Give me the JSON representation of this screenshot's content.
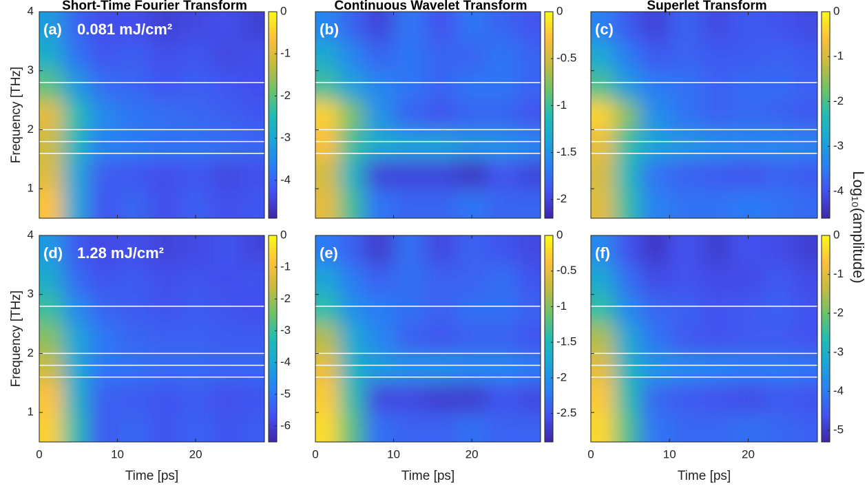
{
  "figure": {
    "colorbar_label": "Log₁₀(amplitude)"
  },
  "chart_data": [
    {
      "type": "heatmap",
      "title": "Short-Time Fourier Transform",
      "panel_label": "(a)",
      "annotation": "0.081 mJ/cm²",
      "ylabel": "Frequency [THz]",
      "x": [
        1.5,
        4.5,
        8,
        12,
        16,
        20,
        24,
        27.5
      ],
      "y": [
        3.75,
        3.25,
        2.75,
        2.25,
        1.75,
        1.25,
        0.75
      ],
      "z": [
        [
          -3.2,
          -4.0,
          -4.3,
          -4.3,
          -4.5,
          -4.4,
          -4.3,
          -4.5
        ],
        [
          -2.8,
          -3.8,
          -4.2,
          -4.1,
          -4.3,
          -4.2,
          -4.4,
          -4.3
        ],
        [
          -2.0,
          -3.2,
          -3.9,
          -4.0,
          -4.2,
          -4.1,
          -4.2,
          -4.3
        ],
        [
          -0.9,
          -2.4,
          -3.5,
          -3.8,
          -3.9,
          -4.0,
          -4.1,
          -4.2
        ],
        [
          -1.2,
          -2.6,
          -3.6,
          -3.7,
          -3.8,
          -3.8,
          -3.9,
          -4.0
        ],
        [
          -1.0,
          -3.0,
          -4.1,
          -4.2,
          -4.3,
          -4.2,
          -4.4,
          -4.3
        ],
        [
          -0.6,
          -3.0,
          -4.2,
          -4.0,
          -4.3,
          -4.1,
          -4.3,
          -4.2
        ]
      ],
      "clim": [
        -4.9,
        0
      ],
      "cticks": [
        0,
        -1,
        -2,
        -3,
        -4
      ],
      "hlines": [
        2.8,
        2,
        1.8,
        1.6
      ],
      "hline_color": "#ffffff",
      "xlim": [
        0,
        28.8
      ],
      "ylim": [
        0.5,
        4
      ],
      "xticks": [
        0,
        10,
        20
      ],
      "yticks": [
        1,
        2,
        3,
        4
      ],
      "show_xtick_labels": false,
      "show_ytick_labels": true
    },
    {
      "type": "heatmap",
      "title": "Continuous Wavelet Transform",
      "panel_label": "(b)",
      "x": [
        1.5,
        4.5,
        8,
        12,
        16,
        20,
        24,
        27.5
      ],
      "y": [
        3.75,
        3.25,
        2.75,
        2.25,
        1.75,
        1.25,
        0.75
      ],
      "z": [
        [
          -1.6,
          -1.8,
          -2.0,
          -1.7,
          -1.9,
          -1.7,
          -1.8,
          -1.9
        ],
        [
          -1.3,
          -1.6,
          -1.8,
          -1.7,
          -1.8,
          -1.8,
          -1.7,
          -1.8
        ],
        [
          -1.0,
          -1.4,
          -1.6,
          -1.7,
          -1.8,
          -1.7,
          -1.7,
          -1.8
        ],
        [
          -0.2,
          -0.8,
          -1.5,
          -1.8,
          -1.9,
          -1.8,
          -1.8,
          -1.9
        ],
        [
          -0.3,
          -1.0,
          -1.3,
          -1.4,
          -1.4,
          -1.5,
          -1.5,
          -1.6
        ],
        [
          -0.5,
          -1.2,
          -2.0,
          -2.0,
          -2.0,
          -2.1,
          -1.9,
          -2.0
        ],
        [
          -0.4,
          -1.0,
          -1.7,
          -1.8,
          -1.8,
          -1.7,
          -1.8,
          -1.8
        ]
      ],
      "clim": [
        -2.2,
        0
      ],
      "cticks": [
        0,
        -0.5,
        -1,
        -1.5,
        -2
      ],
      "hlines": [
        2.8,
        2,
        1.8,
        1.6
      ],
      "hline_color": "#ffffff",
      "xlim": [
        0,
        28.8
      ],
      "ylim": [
        0.5,
        4
      ],
      "xticks": [
        0,
        10,
        20
      ],
      "yticks": [
        1,
        2,
        3,
        4
      ],
      "show_xtick_labels": false,
      "show_ytick_labels": false
    },
    {
      "type": "heatmap",
      "title": "Superlet Transform",
      "panel_label": "(c)",
      "x": [
        1.5,
        4.5,
        8,
        12,
        16,
        20,
        24,
        27.5
      ],
      "y": [
        3.75,
        3.25,
        2.75,
        2.25,
        1.75,
        1.25,
        0.75
      ],
      "z": [
        [
          -3.4,
          -3.9,
          -4.2,
          -3.8,
          -4.1,
          -3.9,
          -4.0,
          -4.1
        ],
        [
          -2.8,
          -3.5,
          -3.9,
          -3.8,
          -3.9,
          -3.9,
          -3.8,
          -3.9
        ],
        [
          -2.0,
          -3.0,
          -3.5,
          -3.6,
          -3.8,
          -3.7,
          -3.7,
          -3.8
        ],
        [
          -0.4,
          -1.6,
          -3.2,
          -3.6,
          -3.8,
          -3.7,
          -3.8,
          -3.9
        ],
        [
          -0.8,
          -2.2,
          -2.9,
          -3.1,
          -3.2,
          -3.3,
          -3.3,
          -3.4
        ],
        [
          -1.0,
          -2.4,
          -3.6,
          -3.8,
          -3.9,
          -4.0,
          -3.8,
          -3.9
        ],
        [
          -0.9,
          -2.2,
          -3.4,
          -3.6,
          -3.6,
          -3.5,
          -3.6,
          -3.7
        ]
      ],
      "clim": [
        -4.6,
        0
      ],
      "cticks": [
        0,
        -1,
        -2,
        -3,
        -4
      ],
      "hlines": [
        2.8,
        2,
        1.8,
        1.6
      ],
      "hline_color": "#ffffff",
      "xlim": [
        0,
        28.8
      ],
      "ylim": [
        0.5,
        4
      ],
      "xticks": [
        0,
        10,
        20
      ],
      "yticks": [
        1,
        2,
        3,
        4
      ],
      "show_xtick_labels": false,
      "show_ytick_labels": false
    },
    {
      "type": "heatmap",
      "panel_label": "(d)",
      "annotation": "1.28 mJ/cm²",
      "ylabel": "Frequency [THz]",
      "xlabel": "Time [ps]",
      "x": [
        1.5,
        4.5,
        8,
        12,
        16,
        20,
        24,
        27.5
      ],
      "y": [
        3.75,
        3.25,
        2.75,
        2.25,
        1.75,
        1.25,
        0.75
      ],
      "z": [
        [
          -4.3,
          -5.5,
          -5.8,
          -5.7,
          -5.9,
          -5.8,
          -5.6,
          -5.9
        ],
        [
          -3.8,
          -5.2,
          -5.6,
          -5.5,
          -5.7,
          -5.6,
          -5.7,
          -5.6
        ],
        [
          -3.0,
          -4.6,
          -5.3,
          -5.5,
          -5.6,
          -5.5,
          -5.6,
          -5.7
        ],
        [
          -2.2,
          -4.0,
          -5.0,
          -5.3,
          -5.4,
          -5.4,
          -5.5,
          -5.5
        ],
        [
          -1.6,
          -3.9,
          -5.0,
          -5.1,
          -5.2,
          -5.2,
          -5.3,
          -5.3
        ],
        [
          -0.8,
          -3.6,
          -5.4,
          -5.5,
          -5.6,
          -5.5,
          -5.7,
          -5.6
        ],
        [
          -0.6,
          -3.2,
          -5.5,
          -5.3,
          -5.6,
          -5.4,
          -5.6,
          -5.5
        ]
      ],
      "clim": [
        -6.5,
        0
      ],
      "cticks": [
        0,
        -1,
        -2,
        -3,
        -4,
        -5,
        -6
      ],
      "hlines": [
        2.8,
        2,
        1.8,
        1.6
      ],
      "hline_color": "#ffffff",
      "xlim": [
        0,
        28.8
      ],
      "ylim": [
        0.5,
        4
      ],
      "xticks": [
        0,
        10,
        20
      ],
      "yticks": [
        1,
        2,
        3,
        4
      ],
      "show_xtick_labels": true,
      "show_ytick_labels": true
    },
    {
      "type": "heatmap",
      "panel_label": "(e)",
      "xlabel": "Time [ps]",
      "x": [
        1.5,
        4.5,
        8,
        12,
        16,
        20,
        24,
        27.5
      ],
      "y": [
        3.75,
        3.25,
        2.75,
        2.25,
        1.75,
        1.25,
        0.75
      ],
      "z": [
        [
          -2.2,
          -2.4,
          -2.7,
          -2.3,
          -2.6,
          -2.4,
          -2.5,
          -2.6
        ],
        [
          -1.8,
          -2.2,
          -2.4,
          -2.3,
          -2.4,
          -2.4,
          -2.3,
          -2.5
        ],
        [
          -1.4,
          -2.0,
          -2.2,
          -2.3,
          -2.4,
          -2.3,
          -2.3,
          -2.4
        ],
        [
          -0.8,
          -1.7,
          -2.1,
          -2.4,
          -2.5,
          -2.4,
          -2.4,
          -2.5
        ],
        [
          -0.5,
          -1.6,
          -1.9,
          -2.0,
          -2.0,
          -2.1,
          -2.1,
          -2.2
        ],
        [
          -0.3,
          -1.4,
          -2.6,
          -2.6,
          -2.7,
          -2.7,
          -2.5,
          -2.6
        ],
        [
          -0.2,
          -1.2,
          -2.3,
          -2.4,
          -2.4,
          -2.3,
          -2.4,
          -2.4
        ]
      ],
      "clim": [
        -2.9,
        0
      ],
      "cticks": [
        0,
        -0.5,
        -1,
        -1.5,
        -2,
        -2.5
      ],
      "hlines": [
        2.8,
        2,
        1.8,
        1.6
      ],
      "hline_color": "#ffffff",
      "xlim": [
        0,
        28.8
      ],
      "ylim": [
        0.5,
        4
      ],
      "xticks": [
        0,
        10,
        20
      ],
      "yticks": [
        1,
        2,
        3,
        4
      ],
      "show_xtick_labels": true,
      "show_ytick_labels": false
    },
    {
      "type": "heatmap",
      "panel_label": "(f)",
      "xlabel": "Time [ps]",
      "x": [
        1.5,
        4.5,
        8,
        12,
        16,
        20,
        24,
        27.5
      ],
      "y": [
        3.75,
        3.25,
        2.75,
        2.25,
        1.75,
        1.25,
        0.75
      ],
      "z": [
        [
          -3.8,
          -4.6,
          -5.0,
          -4.6,
          -4.9,
          -4.6,
          -4.7,
          -4.9
        ],
        [
          -3.2,
          -4.2,
          -4.7,
          -4.6,
          -4.7,
          -4.7,
          -4.5,
          -4.7
        ],
        [
          -2.5,
          -3.8,
          -4.3,
          -4.4,
          -4.6,
          -4.5,
          -4.4,
          -4.6
        ],
        [
          -1.5,
          -3.2,
          -4.1,
          -4.5,
          -4.6,
          -4.5,
          -4.5,
          -4.6
        ],
        [
          -1.0,
          -2.9,
          -3.6,
          -3.8,
          -3.9,
          -4.0,
          -4.0,
          -4.1
        ],
        [
          -0.6,
          -2.6,
          -4.3,
          -4.5,
          -4.6,
          -4.7,
          -4.5,
          -4.6
        ],
        [
          -0.4,
          -2.3,
          -4.1,
          -4.3,
          -4.3,
          -4.2,
          -4.3,
          -4.4
        ]
      ],
      "clim": [
        -5.3,
        0
      ],
      "cticks": [
        0,
        -1,
        -2,
        -3,
        -4,
        -5
      ],
      "hlines": [
        2.8,
        2,
        1.8,
        1.6
      ],
      "hline_color": "#ffffff",
      "xlim": [
        0,
        28.8
      ],
      "ylim": [
        0.5,
        4
      ],
      "xticks": [
        0,
        10,
        20
      ],
      "yticks": [
        1,
        2,
        3,
        4
      ],
      "show_xtick_labels": true,
      "show_ytick_labels": false
    }
  ]
}
